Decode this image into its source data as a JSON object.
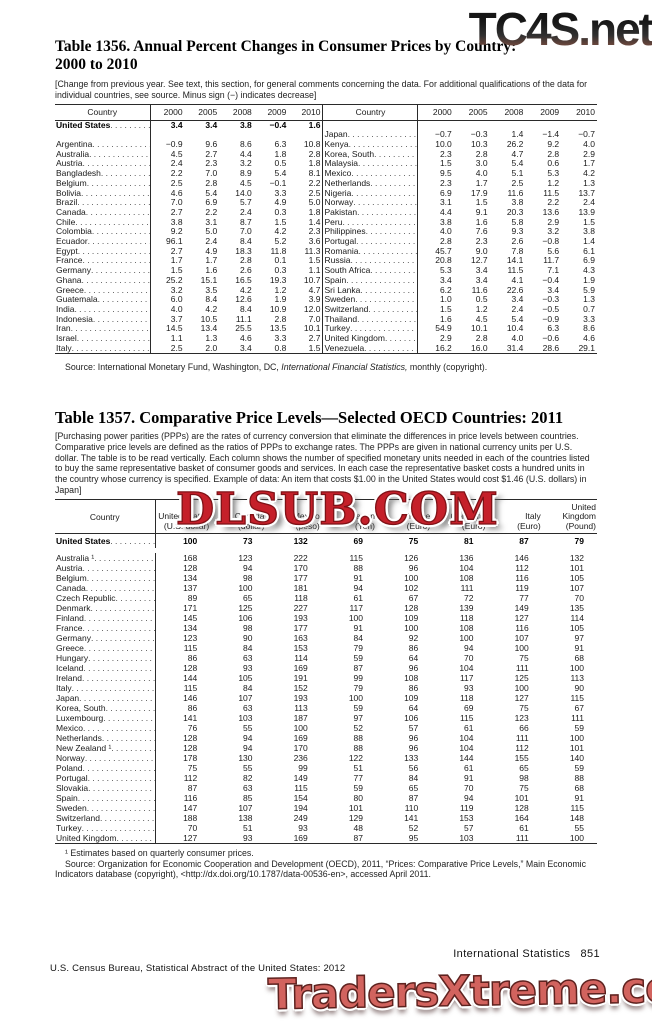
{
  "watermarks": {
    "top": "TC4S.net",
    "middle": "DLSUB.COM",
    "bottom": "TradersXtreme.com"
  },
  "footer": {
    "section": "International Statistics",
    "page": "851",
    "imprint": "U.S. Census Bureau, Statistical Abstract of the United States: 2012"
  },
  "table1356": {
    "title_line1": "Table 1356. Annual Percent Changes in Consumer Prices by Country:",
    "title_line2": "2000 to 2010",
    "note": "[Change from previous year. See text, this section, for general comments concerning the data. For additional qualifications of the data for individual countries, see source. Minus sign (−) indicates decrease]",
    "col_headers": [
      "Country",
      "2000",
      "2005",
      "2008",
      "2009",
      "2010",
      "Country",
      "2000",
      "2005",
      "2008",
      "2009",
      "2010"
    ],
    "source_prefix": "Source: International Monetary Fund, Washington, DC, ",
    "source_italic": "International Financial Statistics,",
    "source_suffix": " monthly (copyright).",
    "rows": [
      {
        "l": "United States",
        "lb": true,
        "lv": [
          "3.4",
          "3.4",
          "3.8",
          "−0.4",
          "1.6"
        ],
        "r": "",
        "rv": [
          "",
          "",
          "",
          "",
          ""
        ]
      },
      {
        "l": "",
        "lb": false,
        "lv": [
          "",
          "",
          "",
          "",
          ""
        ],
        "r": "Japan",
        "rv": [
          "−0.7",
          "−0.3",
          "1.4",
          "−1.4",
          "−0.7"
        ]
      },
      {
        "l": "Argentina",
        "lb": false,
        "lv": [
          "−0.9",
          "9.6",
          "8.6",
          "6.3",
          "10.8"
        ],
        "r": "Kenya",
        "rv": [
          "10.0",
          "10.3",
          "26.2",
          "9.2",
          "4.0"
        ]
      },
      {
        "l": "Australia",
        "lb": false,
        "lv": [
          "4.5",
          "2.7",
          "4.4",
          "1.8",
          "2.8"
        ],
        "r": "Korea, South",
        "rv": [
          "2.3",
          "2.8",
          "4.7",
          "2.8",
          "2.9"
        ]
      },
      {
        "l": "Austria",
        "lb": false,
        "lv": [
          "2.4",
          "2.3",
          "3.2",
          "0.5",
          "1.8"
        ],
        "r": "Malaysia",
        "rv": [
          "1.5",
          "3.0",
          "5.4",
          "0.6",
          "1.7"
        ]
      },
      {
        "l": "Bangladesh",
        "lb": false,
        "lv": [
          "2.2",
          "7.0",
          "8.9",
          "5.4",
          "8.1"
        ],
        "r": "Mexico",
        "rv": [
          "9.5",
          "4.0",
          "5.1",
          "5.3",
          "4.2"
        ]
      },
      {
        "l": "Belgium",
        "lb": false,
        "lv": [
          "2.5",
          "2.8",
          "4.5",
          "−0.1",
          "2.2"
        ],
        "r": "Netherlands",
        "rv": [
          "2.3",
          "1.7",
          "2.5",
          "1.2",
          "1.3"
        ]
      },
      {
        "l": "Bolivia",
        "lb": false,
        "lv": [
          "4.6",
          "5.4",
          "14.0",
          "3.3",
          "2.5"
        ],
        "r": "Nigeria",
        "rv": [
          "6.9",
          "17.9",
          "11.6",
          "11.5",
          "13.7"
        ]
      },
      {
        "l": "Brazil",
        "lb": false,
        "lv": [
          "7.0",
          "6.9",
          "5.7",
          "4.9",
          "5.0"
        ],
        "r": "Norway",
        "rv": [
          "3.1",
          "1.5",
          "3.8",
          "2.2",
          "2.4"
        ]
      },
      {
        "l": "Canada",
        "lb": false,
        "lv": [
          "2.7",
          "2.2",
          "2.4",
          "0.3",
          "1.8"
        ],
        "r": "Pakistan",
        "rv": [
          "4.4",
          "9.1",
          "20.3",
          "13.6",
          "13.9"
        ]
      },
      {
        "l": "Chile",
        "lb": false,
        "lv": [
          "3.8",
          "3.1",
          "8.7",
          "1.5",
          "1.4"
        ],
        "r": "Peru",
        "rv": [
          "3.8",
          "1.6",
          "5.8",
          "2.9",
          "1.5"
        ]
      },
      {
        "l": "Colombia",
        "lb": false,
        "lv": [
          "9.2",
          "5.0",
          "7.0",
          "4.2",
          "2.3"
        ],
        "r": "Philippines",
        "rv": [
          "4.0",
          "7.6",
          "9.3",
          "3.2",
          "3.8"
        ]
      },
      {
        "l": "Ecuador",
        "lb": false,
        "lv": [
          "96.1",
          "2.4",
          "8.4",
          "5.2",
          "3.6"
        ],
        "r": "Portugal",
        "rv": [
          "2.8",
          "2.3",
          "2.6",
          "−0.8",
          "1.4"
        ]
      },
      {
        "l": "Egypt",
        "lb": false,
        "lv": [
          "2.7",
          "4.9",
          "18.3",
          "11.8",
          "11.3"
        ],
        "r": "Romania",
        "rv": [
          "45.7",
          "9.0",
          "7.8",
          "5.6",
          "6.1"
        ]
      },
      {
        "l": "France",
        "lb": false,
        "lv": [
          "1.7",
          "1.7",
          "2.8",
          "0.1",
          "1.5"
        ],
        "r": "Russia",
        "rv": [
          "20.8",
          "12.7",
          "14.1",
          "11.7",
          "6.9"
        ]
      },
      {
        "l": "Germany",
        "lb": false,
        "lv": [
          "1.5",
          "1.6",
          "2.6",
          "0.3",
          "1.1"
        ],
        "r": "South Africa",
        "rv": [
          "5.3",
          "3.4",
          "11.5",
          "7.1",
          "4.3"
        ]
      },
      {
        "l": "Ghana",
        "lb": false,
        "lv": [
          "25.2",
          "15.1",
          "16.5",
          "19.3",
          "10.7"
        ],
        "r": "Spain",
        "rv": [
          "3.4",
          "3.4",
          "4.1",
          "−0.4",
          "1.9"
        ]
      },
      {
        "l": "Greece",
        "lb": false,
        "lv": [
          "3.2",
          "3.5",
          "4.2",
          "1.2",
          "4.7"
        ],
        "r": "Sri Lanka",
        "rv": [
          "6.2",
          "11.6",
          "22.6",
          "3.4",
          "5.9"
        ]
      },
      {
        "l": "Guatemala",
        "lb": false,
        "lv": [
          "6.0",
          "8.4",
          "12.6",
          "1.9",
          "3.9"
        ],
        "r": "Sweden",
        "rv": [
          "1.0",
          "0.5",
          "3.4",
          "−0.3",
          "1.3"
        ]
      },
      {
        "l": "India",
        "lb": false,
        "lv": [
          "4.0",
          "4.2",
          "8.4",
          "10.9",
          "12.0"
        ],
        "r": "Switzerland",
        "rv": [
          "1.5",
          "1.2",
          "2.4",
          "−0.5",
          "0.7"
        ]
      },
      {
        "l": "Indonesia",
        "lb": false,
        "lv": [
          "3.7",
          "10.5",
          "11.1",
          "2.8",
          "7.0"
        ],
        "r": "Thailand",
        "rv": [
          "1.6",
          "4.5",
          "5.4",
          "−0.9",
          "3.3"
        ]
      },
      {
        "l": "Iran",
        "lb": false,
        "lv": [
          "14.5",
          "13.4",
          "25.5",
          "13.5",
          "10.1"
        ],
        "r": "Turkey",
        "rv": [
          "54.9",
          "10.1",
          "10.4",
          "6.3",
          "8.6"
        ]
      },
      {
        "l": "Israel",
        "lb": false,
        "lv": [
          "1.1",
          "1.3",
          "4.6",
          "3.3",
          "2.7"
        ],
        "r": "United Kingdom",
        "rv": [
          "2.9",
          "2.8",
          "4.0",
          "−0.6",
          "4.6"
        ]
      },
      {
        "l": "Italy",
        "lb": false,
        "lv": [
          "2.5",
          "2.0",
          "3.4",
          "0.8",
          "1.5"
        ],
        "r": "Venezuela",
        "rv": [
          "16.2",
          "16.0",
          "31.4",
          "28.6",
          "29.1"
        ]
      }
    ]
  },
  "table1357": {
    "title": "Table 1357. Comparative Price Levels—Selected OECD Countries: 2011",
    "note": "[Purchasing power parities (PPPs) are the rates of currency conversion that eliminate the differences in price levels between countries. Comparative price levels are defined as the ratios of PPPs to exchange rates. The PPPs are given in national currency units per U.S. dollar. The table is to be read vertically. Each column shows the number of specified monetary units needed in each of the countries listed to buy the same representative basket of consumer goods and services. In each case the representative basket costs a hundred units in the country whose currency is specified. Example of data: An item that costs $1.00 in the United States would cost $1.46 (U.S. dollars) in Japan]",
    "country_header": "Country",
    "headers": [
      {
        "name": "United States",
        "cur": "(U.S. dollar)"
      },
      {
        "name": "Canada",
        "cur": "(dollar)"
      },
      {
        "name": "Mexico",
        "cur": "(peso)"
      },
      {
        "name": "Japan",
        "cur": "(Yen)"
      },
      {
        "name": "France",
        "cur": "(Euro)"
      },
      {
        "name": "Germany",
        "cur": "(Euro)"
      },
      {
        "name": "Italy",
        "cur": "(Euro)"
      },
      {
        "name": "United Kingdom",
        "cur": "(Pound)"
      }
    ],
    "us_row": {
      "name": "United States",
      "values": [
        "100",
        "73",
        "132",
        "69",
        "75",
        "81",
        "87",
        "79"
      ]
    },
    "rows": [
      {
        "name": "Australia ¹",
        "values": [
          "168",
          "123",
          "222",
          "115",
          "126",
          "136",
          "146",
          "132"
        ]
      },
      {
        "name": "Austria",
        "values": [
          "128",
          "94",
          "170",
          "88",
          "96",
          "104",
          "112",
          "101"
        ]
      },
      {
        "name": "Belgium",
        "values": [
          "134",
          "98",
          "177",
          "91",
          "100",
          "108",
          "116",
          "105"
        ]
      },
      {
        "name": "Canada",
        "values": [
          "137",
          "100",
          "181",
          "94",
          "102",
          "111",
          "119",
          "107"
        ]
      },
      {
        "name": "Czech Republic",
        "values": [
          "89",
          "65",
          "118",
          "61",
          "67",
          "72",
          "77",
          "70"
        ]
      },
      {
        "name": "Denmark",
        "values": [
          "171",
          "125",
          "227",
          "117",
          "128",
          "139",
          "149",
          "135"
        ]
      },
      {
        "name": "Finland",
        "values": [
          "145",
          "106",
          "193",
          "100",
          "109",
          "118",
          "127",
          "114"
        ]
      },
      {
        "name": "France",
        "values": [
          "134",
          "98",
          "177",
          "91",
          "100",
          "108",
          "116",
          "105"
        ]
      },
      {
        "name": "Germany",
        "values": [
          "123",
          "90",
          "163",
          "84",
          "92",
          "100",
          "107",
          "97"
        ]
      },
      {
        "name": "Greece",
        "values": [
          "115",
          "84",
          "153",
          "79",
          "86",
          "94",
          "100",
          "91"
        ]
      },
      {
        "name": "Hungary",
        "values": [
          "86",
          "63",
          "114",
          "59",
          "64",
          "70",
          "75",
          "68"
        ]
      },
      {
        "name": "Iceland",
        "values": [
          "128",
          "93",
          "169",
          "87",
          "96",
          "104",
          "111",
          "100"
        ]
      },
      {
        "name": "Ireland",
        "values": [
          "144",
          "105",
          "191",
          "99",
          "108",
          "117",
          "125",
          "113"
        ]
      },
      {
        "name": "Italy",
        "values": [
          "115",
          "84",
          "152",
          "79",
          "86",
          "93",
          "100",
          "90"
        ]
      },
      {
        "name": "Japan",
        "values": [
          "146",
          "107",
          "193",
          "100",
          "109",
          "118",
          "127",
          "115"
        ]
      },
      {
        "name": "Korea, South",
        "values": [
          "86",
          "63",
          "113",
          "59",
          "64",
          "69",
          "75",
          "67"
        ]
      },
      {
        "name": "Luxembourg",
        "values": [
          "141",
          "103",
          "187",
          "97",
          "106",
          "115",
          "123",
          "111"
        ]
      },
      {
        "name": "Mexico",
        "values": [
          "76",
          "55",
          "100",
          "52",
          "57",
          "61",
          "66",
          "59"
        ]
      },
      {
        "name": "Netherlands",
        "values": [
          "128",
          "94",
          "169",
          "88",
          "96",
          "104",
          "111",
          "100"
        ]
      },
      {
        "name": "New Zealand ¹",
        "values": [
          "128",
          "94",
          "170",
          "88",
          "96",
          "104",
          "112",
          "101"
        ]
      },
      {
        "name": "Norway",
        "values": [
          "178",
          "130",
          "236",
          "122",
          "133",
          "144",
          "155",
          "140"
        ]
      },
      {
        "name": "Poland",
        "values": [
          "75",
          "55",
          "99",
          "51",
          "56",
          "61",
          "65",
          "59"
        ]
      },
      {
        "name": "Portugal",
        "values": [
          "112",
          "82",
          "149",
          "77",
          "84",
          "91",
          "98",
          "88"
        ]
      },
      {
        "name": "Slovakia",
        "values": [
          "87",
          "63",
          "115",
          "59",
          "65",
          "70",
          "75",
          "68"
        ]
      },
      {
        "name": "Spain",
        "values": [
          "116",
          "85",
          "154",
          "80",
          "87",
          "94",
          "101",
          "91"
        ]
      },
      {
        "name": "Sweden",
        "values": [
          "147",
          "107",
          "194",
          "101",
          "110",
          "119",
          "128",
          "115"
        ]
      },
      {
        "name": "Switzerland",
        "values": [
          "188",
          "138",
          "249",
          "129",
          "141",
          "153",
          "164",
          "148"
        ]
      },
      {
        "name": "Turkey",
        "values": [
          "70",
          "51",
          "93",
          "48",
          "52",
          "57",
          "61",
          "55"
        ]
      },
      {
        "name": "United Kingdom",
        "values": [
          "127",
          "93",
          "169",
          "87",
          "95",
          "103",
          "111",
          "100"
        ]
      }
    ],
    "footnote": "¹ Estimates based on quarterly consumer prices.",
    "source": "Source: Organization for Economic Cooperation and Development (OECD), 2011, “Prices: Comparative Price Levels,” Main Economic Indicators database (copyright), <http://dx.doi.org/10.1787/data-00536-en>, accessed April 2011."
  }
}
